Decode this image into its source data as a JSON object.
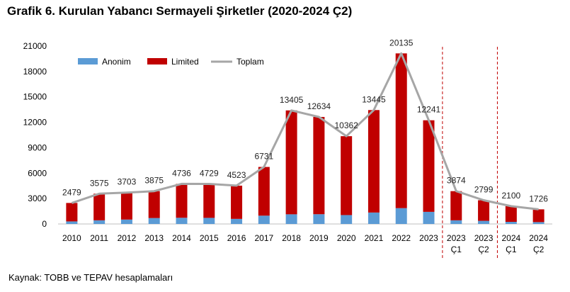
{
  "chart_data": {
    "type": "bar",
    "title": "Grafik 6. Kurulan Yabancı Sermayeli Şirketler (2020-2024 Ç2)",
    "source": "Kaynak: TOBB ve TEPAV hesaplamaları",
    "stacked": true,
    "categories": [
      [
        "2010"
      ],
      [
        "2011"
      ],
      [
        "2012"
      ],
      [
        "2013"
      ],
      [
        "2014"
      ],
      [
        "2015"
      ],
      [
        "2016"
      ],
      [
        "2017"
      ],
      [
        "2018"
      ],
      [
        "2019"
      ],
      [
        "2020"
      ],
      [
        "2021"
      ],
      [
        "2022"
      ],
      [
        "2023"
      ],
      [
        "2023",
        "Ç1"
      ],
      [
        "2023",
        "Ç2"
      ],
      [
        "2024",
        "Ç1"
      ],
      [
        "2024",
        "Ç2"
      ]
    ],
    "series": [
      {
        "name": "Anonim",
        "type": "bar",
        "color": "#5b9bd5",
        "values": [
          300,
          430,
          520,
          700,
          730,
          720,
          600,
          980,
          1140,
          1150,
          1050,
          1350,
          1870,
          1430,
          430,
          370,
          250,
          220
        ]
      },
      {
        "name": "Limited",
        "type": "bar",
        "color": "#c00000",
        "values": [
          2179,
          3145,
          3183,
          3175,
          4006,
          4009,
          3923,
          5751,
          12265,
          11484,
          9312,
          12095,
          18265,
          10811,
          3444,
          2429,
          1850,
          1506
        ]
      },
      {
        "name": "Toplam",
        "type": "line",
        "color": "#a6a6a6",
        "values": [
          2479,
          3575,
          3703,
          3875,
          4736,
          4729,
          4523,
          6731,
          13405,
          12634,
          10362,
          13445,
          20135,
          12241,
          3874,
          2799,
          2100,
          1726
        ]
      }
    ],
    "data_labels": [
      "2479",
      "3575",
      "3703",
      "3875",
      "4736",
      "4729",
      "4523",
      "6731",
      "13405",
      "12634",
      "10362",
      "13445",
      "20135",
      "12241",
      "3874",
      "2799",
      "2100",
      "1726"
    ],
    "y_ticks": [
      "0",
      "3000",
      "6000",
      "9000",
      "12000",
      "15000",
      "18000",
      "21000"
    ],
    "ylim": [
      0,
      21000
    ],
    "legend": "top-left",
    "separators_after_category_index": [
      13,
      15
    ],
    "separator_color": "#c00000",
    "line_stroke": "#a6a6a6"
  }
}
